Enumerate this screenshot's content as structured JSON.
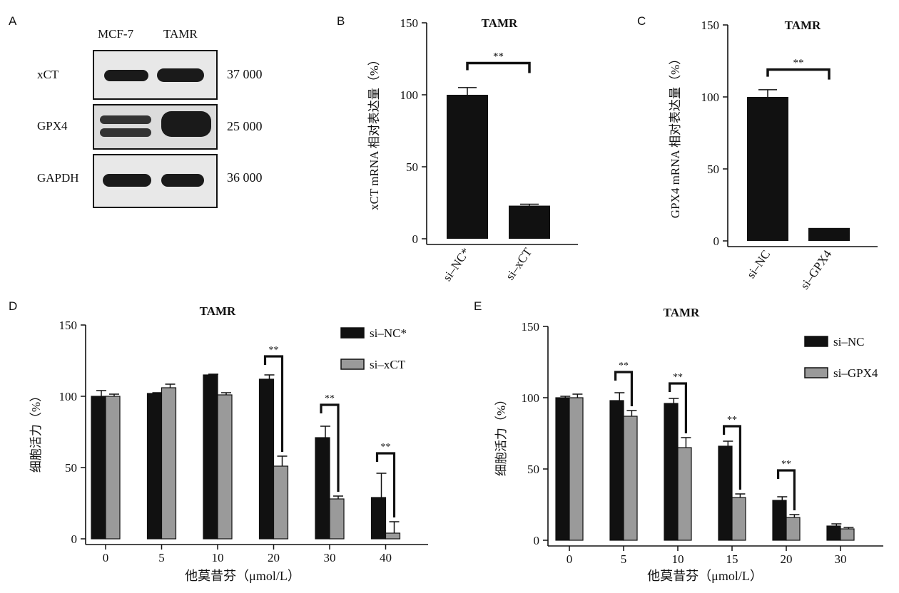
{
  "panel_letters": {
    "A": "A",
    "B": "B",
    "C": "C",
    "D": "D",
    "E": "E"
  },
  "western_blot": {
    "lanes": [
      "MCF-7",
      "TAMR"
    ],
    "rows": [
      {
        "protein": "xCT",
        "mw": "37 000"
      },
      {
        "protein": "GPX4",
        "mw": "25 000"
      },
      {
        "protein": "GAPDH",
        "mw": "36 000"
      }
    ]
  },
  "colors": {
    "dark": "#111111",
    "gray": "#9a9a9a"
  },
  "chart_data": [
    {
      "id": "B",
      "type": "bar",
      "title": "TAMR",
      "ylabel": "xCT mRNA 相对表达量（%）",
      "xlabel": "",
      "ylim": [
        0,
        150
      ],
      "yticks": [
        "0",
        "50",
        "100",
        "150"
      ],
      "categories": [
        "si–NC*",
        "si–xCT"
      ],
      "values": [
        100,
        23
      ],
      "errors": [
        5,
        1
      ],
      "significance": [
        {
          "between": [
            0,
            1
          ],
          "label": "**",
          "level": 122
        }
      ]
    },
    {
      "id": "C",
      "type": "bar",
      "title": "TAMR",
      "ylabel": "GPX4 mRNA 相对表达量（%）",
      "xlabel": "",
      "ylim": [
        0,
        150
      ],
      "yticks": [
        "0",
        "50",
        "100",
        "150"
      ],
      "categories": [
        "si–NC",
        "si–GPX4"
      ],
      "values": [
        100,
        9
      ],
      "errors": [
        5,
        0
      ],
      "significance": [
        {
          "between": [
            0,
            1
          ],
          "label": "**",
          "level": 119
        }
      ]
    },
    {
      "id": "D",
      "type": "bar",
      "title": "TAMR",
      "ylabel": "细胞活力（%）",
      "xlabel": "他莫昔芬（μmol/L）",
      "ylim": [
        0,
        150
      ],
      "yticks": [
        "0",
        "50",
        "100",
        "150"
      ],
      "categories": [
        "0",
        "5",
        "10",
        "20",
        "30",
        "40"
      ],
      "series": [
        {
          "name": "si–NC*",
          "values": [
            100,
            102,
            115,
            112,
            71,
            29
          ],
          "errors": [
            4,
            0.5,
            0.5,
            3,
            8,
            17
          ]
        },
        {
          "name": "si–xCT",
          "values": [
            100,
            106,
            101,
            51,
            28,
            4
          ],
          "errors": [
            1.5,
            2.5,
            1.5,
            7,
            2,
            8
          ]
        }
      ],
      "significance": [
        {
          "category": 3,
          "label": "**",
          "level": 128
        },
        {
          "category": 4,
          "label": "**",
          "level": 94
        },
        {
          "category": 5,
          "label": "**",
          "level": 60
        }
      ]
    },
    {
      "id": "E",
      "type": "bar",
      "title": "TAMR",
      "ylabel": "细胞活力（%）",
      "xlabel": "他莫昔芬（μmol/L）",
      "ylim": [
        0,
        150
      ],
      "yticks": [
        "0",
        "50",
        "100",
        "150"
      ],
      "categories": [
        "0",
        "5",
        "10",
        "15",
        "20",
        "30"
      ],
      "series": [
        {
          "name": "si–NC",
          "values": [
            100,
            98,
            96,
            66,
            28,
            10
          ],
          "errors": [
            1,
            5.5,
            3.5,
            3.5,
            2.5,
            1.5
          ]
        },
        {
          "name": "si–GPX4",
          "values": [
            100,
            87,
            65,
            30,
            16,
            8
          ],
          "errors": [
            2.5,
            4,
            7,
            2.5,
            2,
            1
          ]
        }
      ],
      "significance": [
        {
          "category": 1,
          "label": "**",
          "level": 118
        },
        {
          "category": 2,
          "label": "**",
          "level": 110
        },
        {
          "category": 3,
          "label": "**",
          "level": 80
        },
        {
          "category": 4,
          "label": "**",
          "level": 49
        }
      ]
    }
  ]
}
